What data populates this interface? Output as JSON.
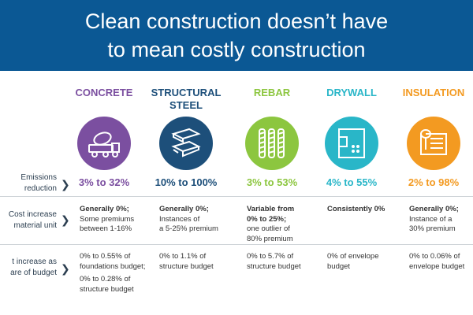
{
  "title_line1": "Clean construction doesn’t have",
  "title_line2": "to mean costly construction",
  "rows": {
    "emissions": [
      "Emissions",
      "reduction"
    ],
    "cost_unit": [
      "Cost increase",
      "material unit"
    ],
    "cost_budget": [
      "t increase as",
      "are of budget"
    ]
  },
  "materials": [
    {
      "name": "CONCRETE",
      "color": "#7b4fa0",
      "icon": "concrete-mixer-icon",
      "emissions": "3% to 32%",
      "unit_bold": "Generally 0%;",
      "unit_rest": [
        "Some premiums",
        "between 1-16%"
      ],
      "budget": [
        "0% to 0.55% of",
        "foundations budget;",
        "0% to 0.28% of",
        "structure budget"
      ]
    },
    {
      "name": "STRUCTURAL",
      "name2": "STEEL",
      "color": "#1d4f7a",
      "icon": "steel-beam-icon",
      "emissions": "10% to 100%",
      "unit_bold": "Generally 0%;",
      "unit_rest": [
        "Instances of",
        "a 5-25% premium"
      ],
      "budget": [
        "0% to 1.1% of",
        "structure budget"
      ]
    },
    {
      "name": "REBAR",
      "color": "#8cc63f",
      "icon": "rebar-icon",
      "emissions": "3% to 53%",
      "unit_bold": "Variable from",
      "unit_bold2": "0% to 25%;",
      "unit_rest": [
        "one outlier of",
        "80% premium"
      ],
      "budget": [
        "0% to 5.7% of",
        "structure budget"
      ]
    },
    {
      "name": "DRYWALL",
      "color": "#29b6c8",
      "icon": "drywall-icon",
      "emissions": "4% to 55%",
      "unit_bold": "Consistently 0%",
      "unit_rest": [],
      "budget": [
        "0% of envelope",
        "budget"
      ]
    },
    {
      "name": "INSULATION",
      "color": "#f39a21",
      "icon": "insulation-roll-icon",
      "emissions": "2% to 98%",
      "unit_bold": "Generally 0%;",
      "unit_rest": [
        "Instance of a",
        "30% premium"
      ],
      "budget": [
        "0% to 0.06% of",
        "envelope budget"
      ]
    }
  ]
}
